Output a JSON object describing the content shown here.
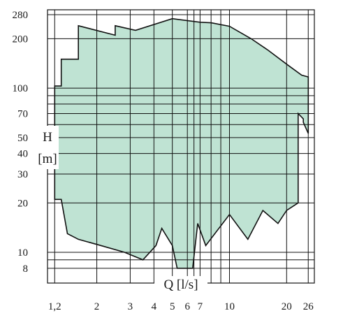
{
  "chart_data": {
    "type": "area",
    "xlabel": "Q [l/s]",
    "ylabel_line1": "H",
    "ylabel_line2": "[m]",
    "xscale": "log",
    "yscale": "log",
    "xlim": [
      1.1,
      28
    ],
    "ylim": [
      6.5,
      300
    ],
    "grid": true,
    "fill_color": "#bfe3d3",
    "line_color": "#111111",
    "x_ticks": [
      {
        "value": 1.2,
        "label": "1,2"
      },
      {
        "value": 2,
        "label": "2"
      },
      {
        "value": 3,
        "label": "3"
      },
      {
        "value": 4,
        "label": "4"
      },
      {
        "value": 5,
        "label": "5"
      },
      {
        "value": 6,
        "label": "6"
      },
      {
        "value": 7,
        "label": "7"
      },
      {
        "value": 10,
        "label": "10"
      },
      {
        "value": 20,
        "label": "20"
      },
      {
        "value": 26,
        "label": "26"
      }
    ],
    "y_ticks": [
      {
        "value": 8,
        "label": "8"
      },
      {
        "value": 10,
        "label": "10"
      },
      {
        "value": 20,
        "label": "20"
      },
      {
        "value": 30,
        "label": "30"
      },
      {
        "value": 40,
        "label": "40"
      },
      {
        "value": 50,
        "label": "50"
      },
      {
        "value": 70,
        "label": "70"
      },
      {
        "value": 100,
        "label": "100"
      },
      {
        "value": 200,
        "label": "200"
      },
      {
        "value": 280,
        "label": "280"
      }
    ],
    "x_gridlines": [
      1.2,
      2,
      3,
      4,
      5,
      6,
      6.5,
      7,
      8,
      9,
      10,
      20,
      26
    ],
    "y_gridlines": [
      8,
      9,
      10,
      20,
      30,
      40,
      50,
      60,
      70,
      80,
      90,
      100,
      200,
      280
    ],
    "operating_range": {
      "x": [
        1.2,
        1.2,
        1.3,
        1.3,
        1.6,
        1.6,
        2.5,
        2.5,
        3.2,
        3.2,
        5,
        5,
        7,
        8,
        10,
        13,
        16,
        20,
        24,
        26,
        26,
        24.5,
        24.5,
        23,
        23,
        20,
        18,
        18,
        15,
        15,
        12.5,
        12.5,
        10,
        10,
        7.5,
        7.5,
        6.8,
        6.8,
        6.4,
        5.3,
        5,
        4.4,
        4.4,
        4.1,
        4.1,
        3.5,
        2.8,
        2.1,
        1.6,
        1.4,
        1.4,
        1.3,
        1.2
      ],
      "y": [
        22,
        103,
        103,
        150,
        150,
        240,
        210,
        240,
        225,
        225,
        265,
        265,
        252,
        250,
        238,
        200,
        170,
        140,
        120,
        117,
        53,
        62,
        65,
        70,
        20,
        18,
        15,
        15,
        18,
        18,
        12,
        12,
        17,
        17,
        11,
        11,
        15,
        15,
        8,
        8,
        11,
        14,
        14,
        11,
        11,
        9,
        10,
        11,
        12,
        13,
        13,
        21,
        21
      ]
    }
  }
}
